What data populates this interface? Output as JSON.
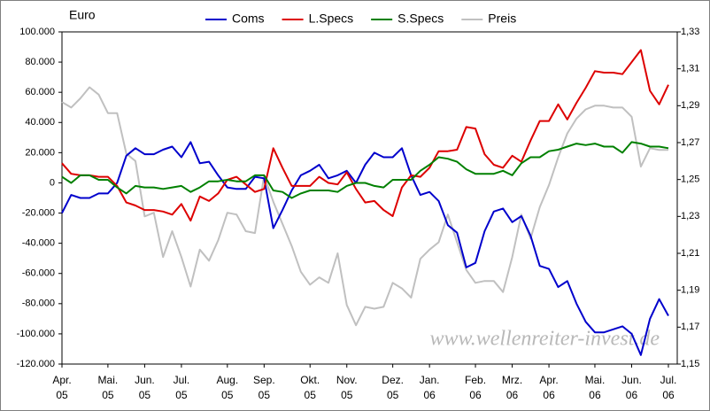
{
  "chart_data": {
    "type": "line",
    "y_label": "Euro",
    "watermark": "www.wellenreiter-invest.de",
    "legend": "top",
    "categories": [
      "Apr. 05",
      null,
      null,
      null,
      null,
      "Mai. 05",
      null,
      null,
      null,
      "Jun. 05",
      null,
      null,
      null,
      "Jul. 05",
      null,
      null,
      null,
      null,
      "Aug. 05",
      null,
      null,
      null,
      "Sep. 05",
      null,
      null,
      null,
      null,
      "Okt. 05",
      null,
      null,
      null,
      "Nov. 05",
      null,
      null,
      null,
      null,
      "Dez. 05",
      null,
      null,
      null,
      "Jan. 06",
      null,
      null,
      null,
      null,
      "Feb. 06",
      null,
      null,
      null,
      "Mrz. 06",
      null,
      null,
      null,
      "Apr. 06",
      null,
      null,
      null,
      null,
      "Mai. 06",
      null,
      null,
      null,
      "Jun. 06",
      null,
      null,
      null,
      "Jul. 06"
    ],
    "series": [
      {
        "name": "Coms",
        "color": "#0000cc",
        "values": [
          -20000,
          -8000,
          -10000,
          -10000,
          -7000,
          -7000,
          0,
          18000,
          23000,
          19000,
          19000,
          22000,
          24000,
          17000,
          27000,
          13000,
          14000,
          5000,
          -3000,
          -4000,
          -4000,
          4000,
          3000,
          -30000,
          -18000,
          -5000,
          5000,
          8000,
          12000,
          3000,
          5000,
          8000,
          0,
          12000,
          20000,
          17000,
          17000,
          23000,
          5000,
          -8000,
          -6000,
          -12000,
          -28000,
          -33000,
          -56000,
          -53000,
          -32000,
          -19000,
          -17000,
          -26000,
          -22000,
          -35000,
          -55000,
          -57000,
          -69000,
          -65000,
          -80000,
          -92000,
          -99000,
          -99000,
          -97000,
          -95000,
          -100000,
          -114000,
          -90000,
          -77000,
          -88000
        ]
      },
      {
        "name": "L.Specs",
        "color": "#dd0000",
        "values": [
          13000,
          6000,
          5000,
          5000,
          4000,
          4000,
          -2000,
          -13000,
          -15000,
          -18000,
          -18000,
          -19000,
          -21000,
          -14000,
          -25000,
          -9000,
          -12000,
          -7000,
          2000,
          4000,
          -1000,
          -6000,
          -4000,
          23000,
          10000,
          -2000,
          -2000,
          -2000,
          4000,
          0,
          -1000,
          7000,
          -4000,
          -13000,
          -12000,
          -18000,
          -22000,
          -3000,
          5000,
          4000,
          10000,
          21000,
          21000,
          22000,
          37000,
          36000,
          19000,
          12000,
          10000,
          18000,
          14000,
          28000,
          41000,
          41000,
          52000,
          42000,
          53000,
          63000,
          74000,
          73000,
          73000,
          72000,
          80000,
          88000,
          61000,
          52000,
          65000
        ]
      },
      {
        "name": "S.Specs",
        "color": "#008000",
        "values": [
          4000,
          0,
          5000,
          5000,
          2000,
          2000,
          -3000,
          -7000,
          -2000,
          -3000,
          -3000,
          -4000,
          -3000,
          -2000,
          -6000,
          -3000,
          1000,
          1000,
          2000,
          1000,
          1000,
          5000,
          5000,
          -5000,
          -6000,
          -10000,
          -7000,
          -5000,
          -5000,
          -5000,
          -6000,
          -2000,
          0,
          0,
          -2000,
          -3000,
          2000,
          2000,
          2000,
          8000,
          12000,
          17000,
          16000,
          14000,
          9000,
          6000,
          6000,
          6000,
          8000,
          5000,
          13000,
          17000,
          17000,
          21000,
          22000,
          24000,
          26000,
          25000,
          26000,
          24000,
          24000,
          20000,
          27000,
          26000,
          24000,
          24000,
          23000
        ]
      },
      {
        "name": "Preis",
        "color": "#c0c0c0",
        "axis": "y2",
        "values": [
          1.292,
          1.289,
          1.294,
          1.3,
          1.296,
          1.286,
          1.286,
          1.264,
          1.26,
          1.23,
          1.232,
          1.208,
          1.222,
          1.208,
          1.192,
          1.212,
          1.206,
          1.217,
          1.232,
          1.231,
          1.222,
          1.221,
          1.252,
          1.238,
          1.226,
          1.214,
          1.2,
          1.193,
          1.197,
          1.194,
          1.21,
          1.182,
          1.171,
          1.181,
          1.18,
          1.181,
          1.194,
          1.191,
          1.186,
          1.207,
          1.212,
          1.216,
          1.231,
          1.216,
          1.201,
          1.194,
          1.195,
          1.195,
          1.189,
          1.208,
          1.231,
          1.218,
          1.235,
          1.247,
          1.262,
          1.275,
          1.283,
          1.288,
          1.29,
          1.29,
          1.289,
          1.289,
          1.284,
          1.257,
          1.267,
          1.266,
          1.266
        ]
      }
    ],
    "ylim": [
      -120000,
      100000
    ],
    "yticks": [
      {
        "value": -120000,
        "label": "-120.000"
      },
      {
        "value": -100000,
        "label": "-100.000"
      },
      {
        "value": -80000,
        "label": "-80.000"
      },
      {
        "value": -60000,
        "label": "-60.000"
      },
      {
        "value": -40000,
        "label": "-40.000"
      },
      {
        "value": -20000,
        "label": "-20.000"
      },
      0,
      {
        "value": 20000,
        "label": "20.000"
      },
      {
        "value": 40000,
        "label": "40.000"
      },
      {
        "value": 60000,
        "label": "60.000"
      },
      {
        "value": 80000,
        "label": "80.000"
      },
      {
        "value": 100000,
        "label": "100.000"
      }
    ],
    "y2lim": [
      1.15,
      1.33
    ],
    "y2ticks": [
      {
        "value": 1.15,
        "label": "1,15"
      },
      {
        "value": 1.17,
        "label": "1,17"
      },
      {
        "value": 1.19,
        "label": "1,19"
      },
      {
        "value": 1.21,
        "label": "1,21"
      },
      {
        "value": 1.23,
        "label": "1,23"
      },
      {
        "value": 1.25,
        "label": "1,25"
      },
      {
        "value": 1.27,
        "label": "1,27"
      },
      {
        "value": 1.29,
        "label": "1,29"
      },
      {
        "value": 1.31,
        "label": "1,31"
      },
      {
        "value": 1.33,
        "label": "1,33"
      }
    ]
  }
}
